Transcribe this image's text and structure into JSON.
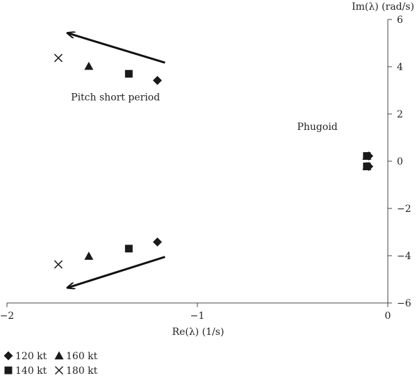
{
  "chart_data": {
    "type": "scatter",
    "title": "",
    "xlabel": "Re(λ) (1/s)",
    "ylabel": "Im(λ) (rad/s)",
    "xlim": [
      -2,
      0
    ],
    "ylim": [
      -6,
      6
    ],
    "xticks": [
      -2,
      -1,
      0
    ],
    "xtick_labels": [
      "−2",
      "−1",
      "0"
    ],
    "yticks": [
      -6,
      -4,
      -2,
      0,
      2,
      4,
      6
    ],
    "ytick_labels": [
      "−6",
      "−4",
      "−2",
      "0",
      "2",
      "4",
      "6"
    ],
    "grid": false,
    "legend_position": "bottom-left",
    "series": [
      {
        "name": "120 kt",
        "marker": "diamond",
        "color": "#1a1a1a",
        "points": [
          [
            -1.21,
            3.42
          ],
          [
            -1.21,
            -3.42
          ],
          [
            -0.1,
            0.22
          ],
          [
            -0.1,
            -0.22
          ]
        ]
      },
      {
        "name": "140 kt",
        "marker": "square",
        "color": "#1a1a1a",
        "points": [
          [
            -1.36,
            3.7
          ],
          [
            -1.36,
            -3.7
          ],
          [
            -0.11,
            0.22
          ],
          [
            -0.11,
            -0.22
          ]
        ]
      },
      {
        "name": "160 kt",
        "marker": "triangle",
        "color": "#1a1a1a",
        "points": [
          [
            -1.57,
            4.02
          ],
          [
            -1.57,
            -4.02
          ],
          [
            -0.11,
            0.21
          ],
          [
            -0.11,
            -0.21
          ]
        ]
      },
      {
        "name": "180 kt",
        "marker": "x",
        "color": "#1a1a1a",
        "points": [
          [
            -1.73,
            4.37
          ],
          [
            -1.73,
            -4.37
          ]
        ]
      }
    ],
    "annotations": [
      {
        "id": "short",
        "text": "Pitch short period",
        "x": -1.43,
        "y": 2.57
      },
      {
        "id": "phugoid",
        "text": "Phugoid",
        "x": -0.37,
        "y": 1.32
      }
    ],
    "arrows": [
      {
        "from": [
          -1.17,
          4.17
        ],
        "to": [
          -1.68,
          5.42
        ]
      },
      {
        "from": [
          -1.17,
          -4.05
        ],
        "to": [
          -1.68,
          -5.35
        ]
      }
    ]
  }
}
